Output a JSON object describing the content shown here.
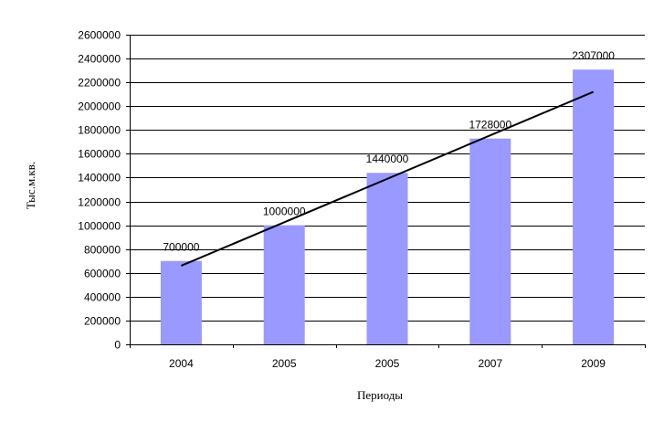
{
  "chart_data": {
    "type": "bar",
    "title": "",
    "xlabel": "Периоды",
    "ylabel": "Тыс.м.кв.",
    "categories": [
      "2004",
      "2005",
      "2005",
      "2007",
      "2009"
    ],
    "values": [
      700000,
      1000000,
      1440000,
      1728000,
      2307000
    ],
    "data_labels": [
      "700000",
      "1000000",
      "1440000",
      "1728000",
      "2307000"
    ],
    "ylim": [
      0,
      2600000
    ],
    "y_ticks": [
      0,
      200000,
      400000,
      600000,
      800000,
      1000000,
      1200000,
      1400000,
      1600000,
      1800000,
      2000000,
      2200000,
      2400000,
      2600000
    ],
    "y_tick_labels": [
      "0",
      "200000",
      "400000",
      "600000",
      "800000",
      "1000000",
      "1200000",
      "1400000",
      "1600000",
      "1800000",
      "2000000",
      "2200000",
      "2400000",
      "2600000"
    ],
    "grid": true,
    "legend": "none",
    "trendline": {
      "type": "linear",
      "start": 660000,
      "end": 2120000
    },
    "colors": {
      "bar": "#9999ff",
      "trendline": "#000000",
      "grid": "#000000",
      "axis": "#000000"
    }
  }
}
